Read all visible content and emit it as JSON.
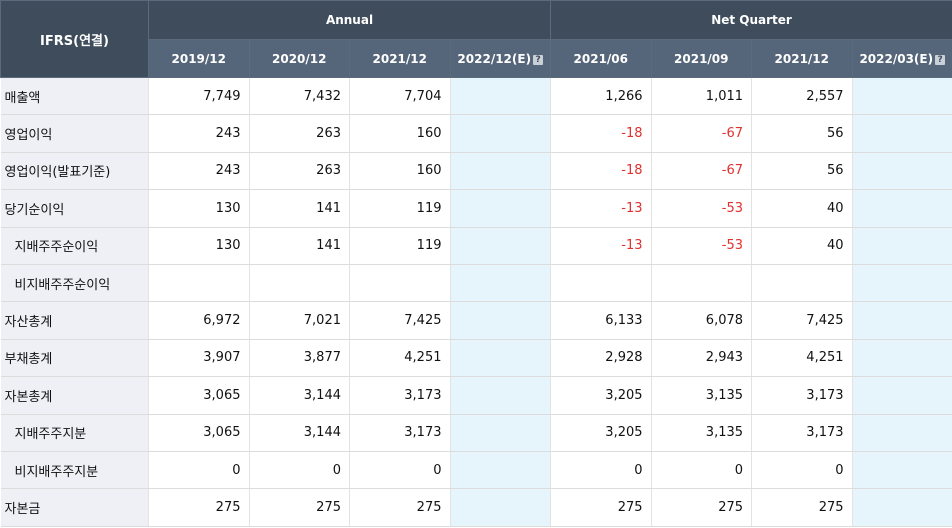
{
  "table": {
    "corner_label": "IFRS(연결)",
    "group_annual": "Annual",
    "group_quarter": "Net Quarter",
    "annual_periods": [
      "2019/12",
      "2020/12",
      "2021/12",
      "2022/12(E)"
    ],
    "quarter_periods": [
      "2021/06",
      "2021/09",
      "2021/12",
      "2022/03(E)"
    ],
    "estimate_icon": "question-icon",
    "rows": [
      {
        "label": "매출액",
        "indent": false,
        "annual": [
          "7,749",
          "7,432",
          "7,704",
          ""
        ],
        "quarter": [
          "1,266",
          "1,011",
          "2,557",
          ""
        ]
      },
      {
        "label": "영업이익",
        "indent": false,
        "annual": [
          "243",
          "263",
          "160",
          ""
        ],
        "quarter": [
          "-18",
          "-67",
          "56",
          ""
        ]
      },
      {
        "label": "영업이익(발표기준)",
        "indent": false,
        "annual": [
          "243",
          "263",
          "160",
          ""
        ],
        "quarter": [
          "-18",
          "-67",
          "56",
          ""
        ]
      },
      {
        "label": "당기순이익",
        "indent": false,
        "annual": [
          "130",
          "141",
          "119",
          ""
        ],
        "quarter": [
          "-13",
          "-53",
          "40",
          ""
        ]
      },
      {
        "label": "지배주주순이익",
        "indent": true,
        "annual": [
          "130",
          "141",
          "119",
          ""
        ],
        "quarter": [
          "-13",
          "-53",
          "40",
          ""
        ]
      },
      {
        "label": "비지배주주순이익",
        "indent": true,
        "annual": [
          "",
          "",
          "",
          ""
        ],
        "quarter": [
          "",
          "",
          "",
          ""
        ]
      },
      {
        "label": "자산총계",
        "indent": false,
        "annual": [
          "6,972",
          "7,021",
          "7,425",
          ""
        ],
        "quarter": [
          "6,133",
          "6,078",
          "7,425",
          ""
        ]
      },
      {
        "label": "부채총계",
        "indent": false,
        "annual": [
          "3,907",
          "3,877",
          "4,251",
          ""
        ],
        "quarter": [
          "2,928",
          "2,943",
          "4,251",
          ""
        ]
      },
      {
        "label": "자본총계",
        "indent": false,
        "annual": [
          "3,065",
          "3,144",
          "3,173",
          ""
        ],
        "quarter": [
          "3,205",
          "3,135",
          "3,173",
          ""
        ]
      },
      {
        "label": "지배주주지분",
        "indent": true,
        "annual": [
          "3,065",
          "3,144",
          "3,173",
          ""
        ],
        "quarter": [
          "3,205",
          "3,135",
          "3,173",
          ""
        ]
      },
      {
        "label": "비지배주주지분",
        "indent": true,
        "annual": [
          "0",
          "0",
          "0",
          ""
        ],
        "quarter": [
          "0",
          "0",
          "0",
          ""
        ]
      },
      {
        "label": "자본금",
        "indent": false,
        "annual": [
          "275",
          "275",
          "275",
          ""
        ],
        "quarter": [
          "275",
          "275",
          "275",
          ""
        ]
      }
    ]
  },
  "colors": {
    "header_dark": "#3f4c5c",
    "header_light": "#56667a",
    "label_bg": "#eef0f6",
    "estimate_bg": "#e6f4fb",
    "negative": "#e03030"
  }
}
